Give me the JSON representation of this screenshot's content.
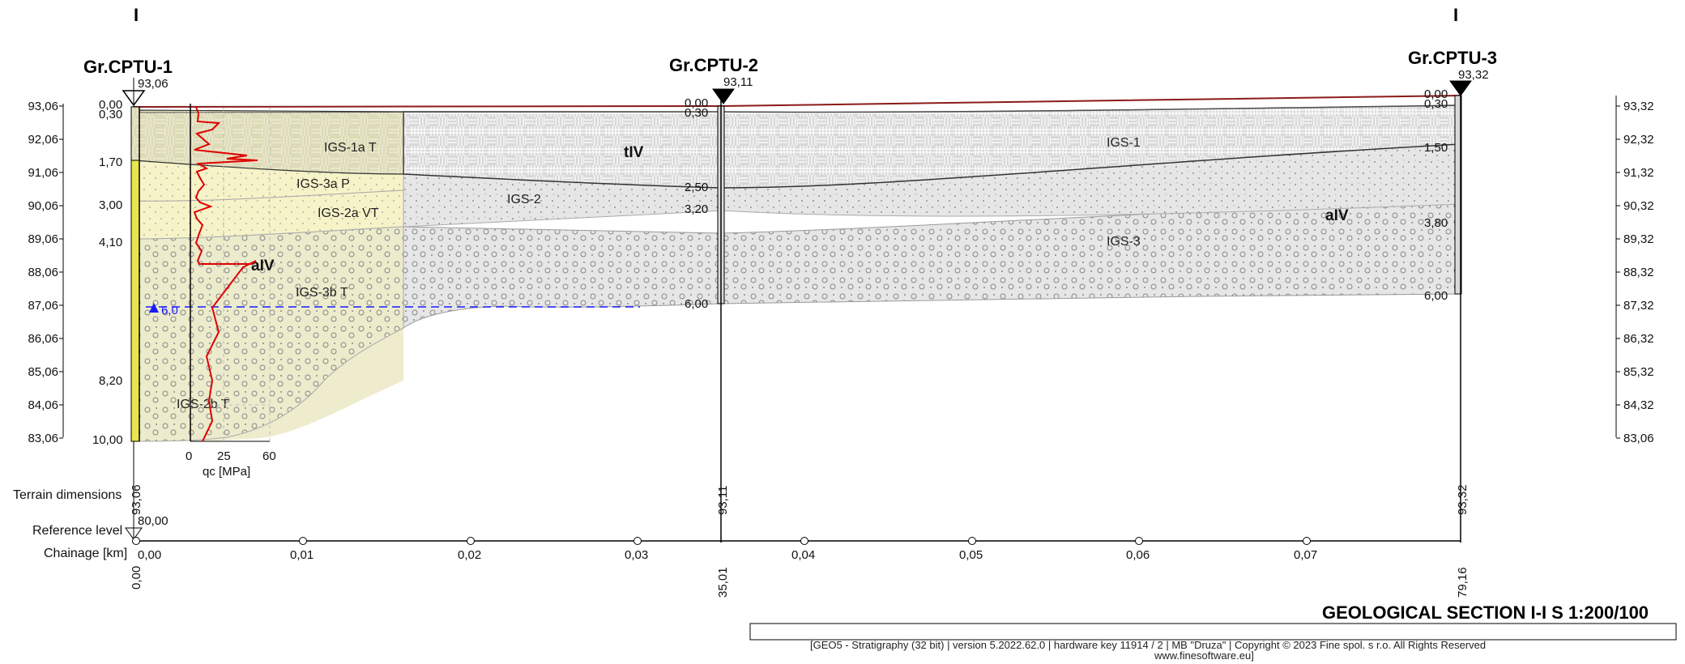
{
  "section_marks": {
    "left": "I",
    "right": "I"
  },
  "boreholes": [
    {
      "name": "Gr.CPTU-1",
      "elevation": "93,06",
      "terrain_dim": "93,06",
      "chainage": "0,00",
      "depths": [
        "0,00",
        "0,30",
        "1,70",
        "3,00",
        "4,10",
        "8,20",
        "10,00"
      ]
    },
    {
      "name": "Gr.CPTU-2",
      "elevation": "93,11",
      "terrain_dim": "93,11",
      "chainage": "35,01",
      "depths": [
        "0,00",
        "0,30",
        "2,50",
        "3,20",
        "6,00"
      ]
    },
    {
      "name": "Gr.CPTU-3",
      "elevation": "93,32",
      "terrain_dim": "93,32",
      "chainage": "79,16",
      "depths": [
        "0,00",
        "0,30",
        "1,50",
        "3,80",
        "6,00"
      ]
    }
  ],
  "left_axis": [
    "93,06",
    "92,06",
    "91,06",
    "90,06",
    "89,06",
    "88,06",
    "87,06",
    "86,06",
    "85,06",
    "84,06",
    "83,06"
  ],
  "right_axis": [
    "93,32",
    "92,32",
    "91,32",
    "90,32",
    "89,32",
    "88,32",
    "87,32",
    "86,32",
    "85,32",
    "84,32",
    "83,06"
  ],
  "layers": {
    "igs1a": "IGS-1a T",
    "igs3a": "IGS-3a P",
    "igs2a": "IGS-2a VT",
    "igs3b": "IGS-3b T",
    "igs2b": "IGS-2b T",
    "igs1": "IGS-1",
    "igs2": "IGS-2",
    "igs3": "IGS-3",
    "tIV": "tIV",
    "aIV_left": "aIV",
    "aIV_right": "aIV"
  },
  "water": {
    "label": "6,0"
  },
  "cpt_axis": {
    "ticks": [
      "0",
      "25",
      "60"
    ],
    "label": "qc [MPa]"
  },
  "bottom": {
    "terrain_dimensions": "Terrain dimensions",
    "reference_level": "Reference level",
    "reference_value": "80,00",
    "chainage_label": "Chainage [km]",
    "chainage_ticks": [
      "0,00",
      "0,01",
      "0,02",
      "0,03",
      "0,04",
      "0,05",
      "0,06",
      "0,07"
    ]
  },
  "title": "GEOLOGICAL SECTION I-I S 1:200/100",
  "footer": {
    "line1": "[GEO5 - Stratigraphy (32 bit) | version 5.2022.62.0 | hardware key 11914 / 2 | MB \"Druza\" | Copyright © 2023 Fine spol. s r.o. All Rights Reserved",
    "line2": "www.finesoftware.eu]"
  },
  "colors": {
    "anthropogenic_fill": "#d9d9d9",
    "gray_soil": "#e6e6e6",
    "yellow_soil": "#f6f3c8",
    "olive_soil": "#ecebcc",
    "terrain_line": "#8b1a1a",
    "water_line": "#1a1aff",
    "cpt_curve": "#e00000"
  }
}
